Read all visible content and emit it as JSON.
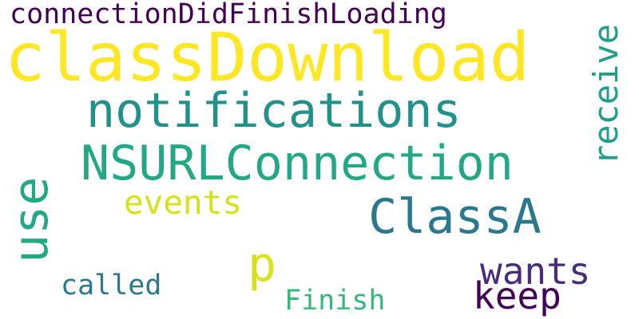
{
  "word_cloud": {
    "words": [
      {
        "text": "connectionDidFinishLoading",
        "color": "#440154",
        "orientation": "horizontal"
      },
      {
        "text": "classDownload",
        "color": "#fde725",
        "orientation": "horizontal"
      },
      {
        "text": "notifications",
        "color": "#21918c",
        "orientation": "horizontal"
      },
      {
        "text": "NSURLConnection",
        "color": "#22a884",
        "orientation": "horizontal"
      },
      {
        "text": "ClassA",
        "color": "#2a788e",
        "orientation": "horizontal"
      },
      {
        "text": "events",
        "color": "#d5e21a",
        "orientation": "horizontal"
      },
      {
        "text": "receive",
        "color": "#1f9e89",
        "orientation": "vertical"
      },
      {
        "text": "use",
        "color": "#22a884",
        "orientation": "vertical"
      },
      {
        "text": "p",
        "color": "#d8e219",
        "orientation": "horizontal"
      },
      {
        "text": "wants",
        "color": "#472d7b",
        "orientation": "horizontal"
      },
      {
        "text": "keep",
        "color": "#440154",
        "orientation": "horizontal"
      },
      {
        "text": "called",
        "color": "#2a788e",
        "orientation": "horizontal"
      },
      {
        "text": "Finish",
        "color": "#35b779",
        "orientation": "horizontal"
      }
    ]
  }
}
